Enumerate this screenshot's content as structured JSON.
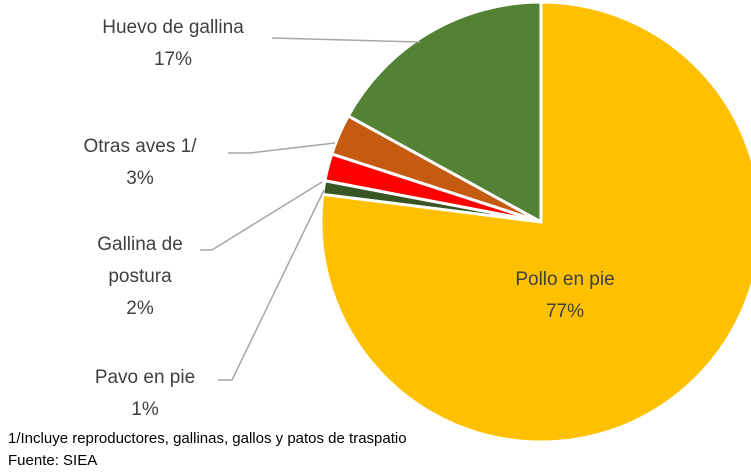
{
  "chart_data": {
    "type": "pie",
    "categories": [
      "Pollo en pie",
      "Pavo en pie",
      "Gallina de postura",
      "Otras aves 1/",
      "Huevo de gallina"
    ],
    "values": [
      77,
      1,
      2,
      3,
      17
    ],
    "value_labels": [
      "77%",
      "1%",
      "2%",
      "3%",
      "17%"
    ],
    "colors": [
      "#FFC000",
      "#375623",
      "#FF0000",
      "#C55A11",
      "#548235"
    ],
    "footnote": "1/Incluye reproductores, gallinas, gallos y patos de traspatio",
    "source": "Fuente: SIEA"
  }
}
